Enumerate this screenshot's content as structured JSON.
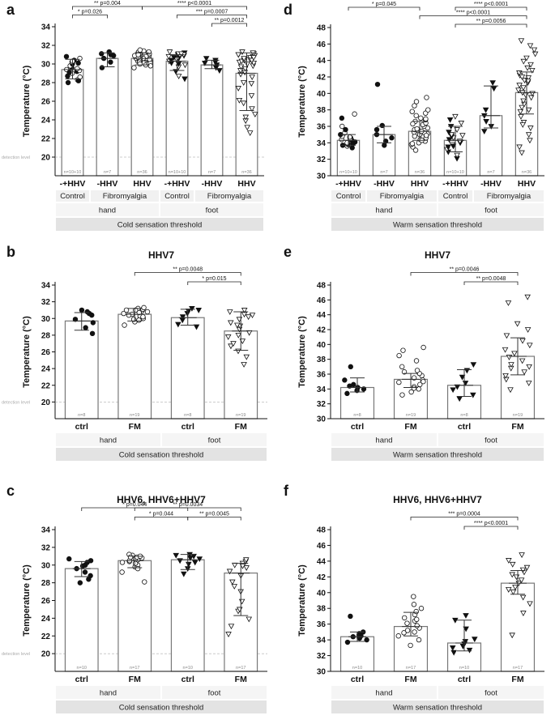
{
  "chart_data": [
    {
      "id": "a",
      "type": "bar",
      "panel_label": "a",
      "title": "",
      "ylabel": "Temperature (°C)",
      "ylim": [
        18,
        34
      ],
      "yticks": [
        20,
        22,
        24,
        26,
        28,
        30,
        32,
        34
      ],
      "detection_label": "detection level",
      "detection_value": 20,
      "categories": [
        "-+HHV",
        "-HHV",
        "HHV",
        "-+HHV",
        "-HHV",
        "HHV"
      ],
      "means": [
        29.4,
        30.6,
        30.6,
        30.3,
        29.9,
        29.0
      ],
      "sd_low": [
        28.4,
        29.7,
        29.9,
        29.3,
        29.5,
        25.0
      ],
      "sd_high": [
        30.5,
        31.2,
        31.2,
        31.0,
        30.4,
        31.2
      ],
      "n_labels": [
        "n=10+10",
        "n=7",
        "n=36",
        "n=10+10",
        "n=7",
        "n=36"
      ],
      "marker_types": [
        "mixed",
        "filled-circle",
        "open-circle",
        "mixed-tri",
        "filled-tri",
        "open-tri"
      ],
      "points": [
        [
          28.0,
          28.3,
          28.7,
          29.0,
          29.2,
          29.4,
          29.6,
          29.8,
          30.0,
          30.2,
          30.4,
          30.6,
          30.8,
          29.3,
          29.1,
          28.6,
          30.1,
          30.3,
          28.2,
          29.5
        ],
        [
          29.6,
          30.2,
          30.6,
          30.9,
          31.0,
          31.1,
          31.3
        ],
        [
          29.6,
          29.9,
          30.0,
          30.1,
          30.2,
          30.3,
          30.4,
          30.5,
          30.6,
          30.7,
          30.8,
          30.9,
          31.0,
          31.0,
          31.1,
          31.1,
          31.2,
          31.2,
          31.3,
          31.3,
          31.4,
          30.5,
          30.6,
          30.7,
          30.8,
          30.9,
          30.4,
          30.3,
          30.2,
          30.1,
          30.0,
          29.8,
          31.5,
          31.0,
          30.6,
          30.5
        ],
        [
          28.4,
          28.7,
          29.2,
          29.7,
          30.0,
          30.3,
          30.6,
          30.8,
          31.0,
          31.1,
          31.2,
          31.3,
          30.9,
          30.5,
          30.1,
          29.9,
          30.7,
          31.0,
          30.4,
          31.1
        ],
        [
          29.3,
          29.6,
          29.9,
          30.1,
          30.2,
          30.4,
          30.6
        ],
        [
          22.6,
          23.2,
          23.9,
          24.6,
          25.2,
          25.8,
          26.6,
          27.4,
          28.0,
          28.6,
          29.1,
          29.5,
          29.8,
          30.0,
          30.2,
          30.3,
          30.4,
          30.5,
          30.6,
          30.7,
          30.8,
          30.9,
          31.0,
          31.1,
          31.2,
          31.3,
          28.9,
          29.3,
          29.7,
          30.1,
          30.4,
          30.7,
          31.0,
          27.9,
          26.1,
          24.3
        ]
      ],
      "annotations": [
        {
          "text": "** p=0.004",
          "from": 0,
          "to": 2,
          "level": 3
        },
        {
          "text": "* p=0.026",
          "from": 0,
          "to": 1,
          "level": 2
        },
        {
          "text": "**** p<0.0001",
          "from": 2,
          "to": 5,
          "level": 3
        },
        {
          "text": "*** p=0.0007",
          "from": 3,
          "to": 5,
          "level": 2
        },
        {
          "text": "** p=0.0012",
          "from": 4,
          "to": 5,
          "level": 1
        }
      ],
      "groups": [
        "Control",
        "Fibromyalgia",
        "Control",
        "Fibromyalgia"
      ],
      "group_spans": [
        [
          0,
          0
        ],
        [
          1,
          2
        ],
        [
          3,
          3
        ],
        [
          4,
          5
        ]
      ],
      "sites": [
        "hand",
        "foot"
      ],
      "threshold_label": "Cold sensation threshold"
    },
    {
      "id": "b",
      "type": "bar",
      "panel_label": "b",
      "title": "HHV7",
      "ylabel": "Temperature (°C)",
      "ylim": [
        18,
        34
      ],
      "yticks": [
        20,
        22,
        24,
        26,
        28,
        30,
        32,
        34
      ],
      "detection_label": "detection level",
      "detection_value": 20,
      "categories": [
        "ctrl",
        "FM",
        "ctrl",
        "FM"
      ],
      "means": [
        29.7,
        30.5,
        30.1,
        28.5
      ],
      "sd_low": [
        28.6,
        29.7,
        29.2,
        26.2
      ],
      "sd_high": [
        30.7,
        31.2,
        31.1,
        30.8
      ],
      "n_labels": [
        "n=8",
        "n=19",
        "n=8",
        "n=19"
      ],
      "marker_types": [
        "filled-circle",
        "open-circle",
        "filled-tri",
        "open-tri"
      ],
      "points": [
        [
          28.2,
          28.9,
          29.5,
          29.9,
          30.4,
          30.8,
          31.0,
          30.6
        ],
        [
          29.2,
          29.6,
          29.9,
          30.1,
          30.3,
          30.5,
          30.6,
          30.8,
          30.9,
          31.0,
          31.1,
          31.2,
          31.3,
          30.7,
          30.4,
          30.0,
          29.8,
          31.0,
          30.2
        ],
        [
          29.0,
          29.3,
          29.8,
          30.2,
          30.6,
          30.9,
          31.2,
          31.0
        ],
        [
          25.4,
          26.1,
          26.7,
          27.3,
          27.8,
          28.3,
          28.7,
          29.1,
          29.5,
          29.9,
          30.2,
          30.5,
          30.8,
          31.0,
          24.5,
          27.0,
          29.2,
          30.4,
          28.0
        ]
      ],
      "annotations": [
        {
          "text": "** p=0.0048",
          "from": 1,
          "to": 3,
          "level": 2
        },
        {
          "text": "* p=0.015",
          "from": 2,
          "to": 3,
          "level": 1
        }
      ],
      "groups": [],
      "group_spans": [],
      "sites": [
        "hand",
        "foot"
      ],
      "threshold_label": "Cold sensation threshold"
    },
    {
      "id": "c",
      "type": "bar",
      "panel_label": "c",
      "title": "HHV6, HHV6+HHV7",
      "ylabel": "Temperature (°C)",
      "ylim": [
        18,
        34
      ],
      "yticks": [
        20,
        22,
        24,
        26,
        28,
        30,
        32,
        34
      ],
      "detection_label": "detection level",
      "detection_value": 20,
      "categories": [
        "ctrl",
        "FM",
        "ctrl",
        "FM"
      ],
      "means": [
        29.6,
        30.5,
        30.6,
        29.1
      ],
      "sd_low": [
        28.7,
        29.7,
        29.5,
        24.3
      ],
      "sd_high": [
        30.4,
        31.0,
        31.2,
        30.2
      ],
      "n_labels": [
        "n=10",
        "n=17",
        "n=10",
        "n=17"
      ],
      "marker_types": [
        "filled-circle",
        "open-circle",
        "filled-tri",
        "open-tri"
      ],
      "points": [
        [
          28.0,
          28.4,
          28.8,
          29.2,
          29.6,
          30.0,
          30.3,
          30.5,
          30.7,
          29.9
        ],
        [
          28.1,
          29.2,
          29.8,
          30.0,
          30.2,
          30.4,
          30.6,
          30.7,
          30.8,
          30.9,
          31.0,
          31.1,
          31.2,
          30.5,
          30.3,
          29.6,
          30.9
        ],
        [
          29.0,
          29.6,
          30.1,
          30.5,
          30.8,
          31.0,
          31.1,
          31.2,
          30.3,
          30.7
        ],
        [
          22.2,
          23.1,
          23.9,
          24.8,
          25.9,
          27.0,
          28.1,
          28.8,
          29.3,
          29.7,
          30.0,
          30.2,
          30.4,
          30.6,
          25.0,
          27.6,
          29.9
        ]
      ],
      "annotations": [
        {
          "text": "* p=0.044",
          "from": 0,
          "to": 2,
          "level": 3
        },
        {
          "text": "* p=0.044",
          "from": 1,
          "to": 2,
          "level": 2
        },
        {
          "text": "** p=0.0034",
          "from": 1,
          "to": 3,
          "level": 3
        },
        {
          "text": "** p=0.0045",
          "from": 2,
          "to": 3,
          "level": 2
        }
      ],
      "groups": [],
      "group_spans": [],
      "sites": [
        "hand",
        "foot"
      ],
      "threshold_label": "Cold sensation threshold"
    },
    {
      "id": "d",
      "type": "bar",
      "panel_label": "d",
      "title": "",
      "ylabel": "Temperature (°C)",
      "ylim": [
        30,
        48
      ],
      "yticks": [
        30,
        32,
        34,
        36,
        38,
        40,
        42,
        44,
        46,
        48
      ],
      "detection_label": "",
      "detection_value": null,
      "categories": [
        "-+HHV",
        "-HHV",
        "HHV",
        "-+HHV",
        "-HHV",
        "HHV"
      ],
      "means": [
        34.3,
        35.0,
        35.4,
        34.3,
        37.3,
        40.1
      ],
      "sd_low": [
        33.7,
        34.0,
        34.3,
        32.9,
        35.8,
        37.5
      ],
      "sd_high": [
        35.0,
        36.0,
        36.6,
        36.0,
        40.9,
        42.6
      ],
      "n_labels": [
        "n=10+10",
        "n=7",
        "n=36",
        "n=10+10",
        "n=7",
        "n=36"
      ],
      "marker_types": [
        "mixed",
        "filled-circle",
        "open-circle",
        "mixed-tri",
        "filled-tri",
        "open-tri"
      ],
      "points": [
        [
          33.4,
          33.6,
          33.8,
          34.0,
          34.1,
          34.2,
          34.3,
          34.4,
          34.6,
          34.8,
          35.0,
          35.2,
          35.6,
          36.0,
          37.0,
          37.5,
          33.9,
          34.5,
          33.7,
          34.7
        ],
        [
          33.7,
          34.2,
          34.6,
          35.0,
          35.6,
          36.1,
          41.1
        ],
        [
          33.1,
          33.5,
          33.8,
          34.0,
          34.2,
          34.4,
          34.6,
          34.8,
          35.0,
          35.1,
          35.2,
          35.3,
          35.4,
          35.5,
          35.6,
          35.8,
          36.0,
          36.2,
          36.4,
          36.6,
          36.8,
          37.0,
          37.3,
          37.6,
          38.0,
          38.5,
          39.0,
          39.5,
          34.9,
          35.7,
          36.3,
          34.3,
          35.4,
          36.9,
          33.9,
          37.8
        ],
        [
          32.1,
          32.5,
          32.9,
          33.2,
          33.5,
          33.8,
          34.0,
          34.2,
          34.4,
          34.6,
          34.8,
          35.0,
          35.3,
          35.6,
          36.0,
          36.4,
          36.8,
          37.2,
          33.6,
          34.9
        ],
        [
          35.4,
          36.0,
          36.6,
          37.3,
          38.0,
          40.6,
          41.3
        ],
        [
          32.8,
          33.5,
          34.3,
          35.0,
          35.8,
          36.5,
          37.2,
          37.8,
          38.3,
          38.7,
          39.1,
          39.5,
          39.8,
          40.1,
          40.4,
          40.7,
          41.0,
          41.3,
          41.6,
          41.9,
          42.2,
          42.5,
          42.8,
          43.1,
          43.5,
          43.9,
          44.3,
          44.8,
          45.3,
          45.8,
          46.4,
          38.0,
          40.0,
          41.5,
          36.2,
          42.0
        ]
      ],
      "annotations": [
        {
          "text": "* p=0.045",
          "from": 0,
          "to": 2,
          "level": 3
        },
        {
          "text": "**** p<0.0001",
          "from": 3,
          "to": 5,
          "level": 3
        },
        {
          "text": "**** p<0.0001",
          "from": 2,
          "to": 5,
          "level": 2
        },
        {
          "text": "** p=0.0056",
          "from": 3,
          "to": 5,
          "level": 1
        }
      ],
      "groups": [
        "Control",
        "Fibromyalgia",
        "Control",
        "Fibromyalgia"
      ],
      "group_spans": [
        [
          0,
          0
        ],
        [
          1,
          2
        ],
        [
          3,
          3
        ],
        [
          4,
          5
        ]
      ],
      "sites": [
        "hand",
        "foot"
      ],
      "threshold_label": "Warm sensation threshold"
    },
    {
      "id": "e",
      "type": "bar",
      "panel_label": "e",
      "title": "HHV7",
      "ylabel": "Temperature (°C)",
      "ylim": [
        30,
        48
      ],
      "yticks": [
        30,
        32,
        34,
        36,
        38,
        40,
        42,
        44,
        46,
        48
      ],
      "detection_label": "",
      "detection_value": null,
      "categories": [
        "ctrl",
        "FM",
        "ctrl",
        "FM"
      ],
      "means": [
        34.2,
        35.3,
        34.5,
        38.4
      ],
      "sd_low": [
        33.6,
        34.2,
        33.0,
        35.9
      ],
      "sd_high": [
        35.5,
        36.1,
        36.6,
        40.9
      ],
      "n_labels": [
        "n=8",
        "n=19",
        "n=8",
        "n=19"
      ],
      "marker_types": [
        "filled-circle",
        "open-circle",
        "filled-tri",
        "open-tri"
      ],
      "points": [
        [
          33.4,
          33.8,
          34.0,
          34.2,
          34.4,
          34.6,
          35.2,
          37.0
        ],
        [
          33.2,
          33.6,
          34.0,
          34.3,
          34.6,
          34.9,
          35.2,
          35.5,
          35.8,
          36.1,
          36.5,
          37.0,
          37.8,
          38.5,
          39.2,
          39.6,
          34.1,
          35.0,
          36.3
        ],
        [
          32.7,
          33.2,
          33.9,
          34.3,
          34.8,
          35.6,
          36.5,
          37.3
        ],
        [
          33.9,
          34.8,
          35.3,
          35.8,
          36.3,
          36.8,
          37.3,
          37.8,
          38.3,
          38.8,
          39.3,
          39.9,
          40.5,
          41.2,
          42.0,
          42.8,
          45.6,
          46.4,
          37.0
        ]
      ],
      "annotations": [
        {
          "text": "** p=0.0046",
          "from": 1,
          "to": 3,
          "level": 2
        },
        {
          "text": "** p=0.0048",
          "from": 2,
          "to": 3,
          "level": 1
        }
      ],
      "groups": [],
      "group_spans": [],
      "sites": [
        "hand",
        "foot"
      ],
      "threshold_label": "Warm sensation threshold"
    },
    {
      "id": "f",
      "type": "bar",
      "panel_label": "f",
      "title": "HHV6, HHV6+HHV7",
      "ylabel": "Temperature (°C)",
      "ylim": [
        30,
        48
      ],
      "yticks": [
        30,
        32,
        34,
        36,
        38,
        40,
        42,
        44,
        46,
        48
      ],
      "detection_label": "",
      "detection_value": null,
      "categories": [
        "ctrl",
        "FM",
        "ctrl",
        "FM"
      ],
      "means": [
        34.4,
        35.7,
        33.6,
        41.2
      ],
      "sd_low": [
        33.8,
        34.5,
        32.6,
        39.8
      ],
      "sd_high": [
        35.0,
        37.5,
        36.5,
        42.8
      ],
      "n_labels": [
        "n=10",
        "n=17",
        "n=10",
        "n=17"
      ],
      "marker_types": [
        "filled-circle",
        "open-circle",
        "filled-tri",
        "open-tri"
      ],
      "points": [
        [
          33.7,
          34.0,
          34.2,
          34.3,
          34.4,
          34.5,
          34.6,
          34.8,
          35.0,
          37.0
        ],
        [
          33.3,
          34.0,
          34.5,
          34.9,
          35.2,
          35.5,
          35.8,
          36.1,
          36.4,
          36.8,
          37.2,
          37.6,
          38.0,
          38.5,
          39.5,
          35.0,
          36.6
        ],
        [
          32.4,
          32.7,
          33.0,
          33.2,
          33.5,
          33.8,
          34.1,
          35.4,
          36.5,
          37.1
        ],
        [
          34.6,
          37.4,
          38.6,
          39.4,
          40.1,
          40.7,
          41.2,
          41.6,
          42.0,
          42.3,
          42.6,
          42.9,
          43.2,
          43.6,
          44.1,
          44.8,
          40.4
        ]
      ],
      "annotations": [
        {
          "text": "*** p=0.0004",
          "from": 1,
          "to": 3,
          "level": 2
        },
        {
          "text": "**** p<0.0001",
          "from": 2,
          "to": 3,
          "level": 1
        }
      ],
      "groups": [],
      "group_spans": [],
      "sites": [
        "hand",
        "foot"
      ],
      "threshold_label": "Warm sensation threshold"
    }
  ]
}
